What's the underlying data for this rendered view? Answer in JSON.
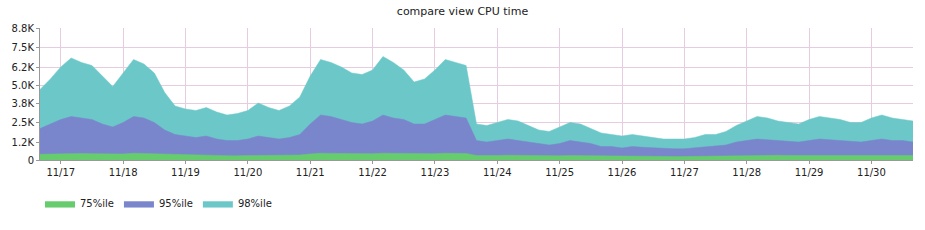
{
  "chart_data": {
    "type": "area",
    "title": "compare view CPU time",
    "stacked": false,
    "grid": true,
    "legend": "bottom left",
    "categories": [
      null,
      null,
      "11/17",
      null,
      null,
      null,
      null,
      null,
      "11/18",
      null,
      null,
      null,
      null,
      null,
      "11/19",
      null,
      null,
      null,
      null,
      null,
      "11/20",
      null,
      null,
      null,
      null,
      null,
      "11/21",
      null,
      null,
      null,
      null,
      null,
      "11/22",
      null,
      null,
      null,
      null,
      null,
      "11/23",
      null,
      null,
      null,
      null,
      null,
      "11/24",
      null,
      null,
      null,
      null,
      null,
      "11/25",
      null,
      null,
      null,
      null,
      null,
      "11/26",
      null,
      null,
      null,
      null,
      null,
      "11/27",
      null,
      null,
      null,
      null,
      null,
      "11/28",
      null,
      null,
      null,
      null,
      null,
      "11/29",
      null,
      null,
      null,
      null,
      null,
      "11/30",
      null,
      null,
      null,
      null
    ],
    "series": [
      {
        "name": "75%ile",
        "color": "#66cc6e",
        "values": [
          380,
          400,
          420,
          450,
          430,
          420,
          400,
          380,
          400,
          450,
          430,
          420,
          380,
          340,
          320,
          310,
          320,
          300,
          290,
          290,
          300,
          320,
          310,
          300,
          310,
          330,
          400,
          450,
          440,
          430,
          410,
          400,
          420,
          450,
          440,
          430,
          410,
          400,
          420,
          450,
          440,
          430,
          300,
          280,
          300,
          320,
          310,
          300,
          280,
          270,
          280,
          300,
          290,
          280,
          260,
          260,
          240,
          250,
          250,
          240,
          230,
          230,
          230,
          240,
          250,
          260,
          270,
          290,
          310,
          330,
          320,
          310,
          300,
          300,
          310,
          330,
          320,
          310,
          300,
          300,
          320,
          340,
          320,
          310,
          300
        ]
      },
      {
        "name": "95%ile",
        "color": "#7a86cc",
        "values": [
          2100,
          2400,
          2700,
          2900,
          2800,
          2700,
          2400,
          2200,
          2500,
          2900,
          2800,
          2500,
          2000,
          1700,
          1600,
          1500,
          1600,
          1400,
          1300,
          1300,
          1400,
          1600,
          1500,
          1400,
          1500,
          1700,
          2400,
          3000,
          2900,
          2700,
          2500,
          2400,
          2600,
          3000,
          2800,
          2700,
          2400,
          2400,
          2700,
          3000,
          2900,
          2800,
          1300,
          1200,
          1300,
          1400,
          1300,
          1200,
          1100,
          1000,
          1100,
          1300,
          1200,
          1100,
          900,
          900,
          800,
          900,
          850,
          800,
          750,
          750,
          750,
          800,
          850,
          900,
          1000,
          1200,
          1300,
          1400,
          1350,
          1300,
          1200,
          1200,
          1300,
          1400,
          1350,
          1300,
          1200,
          1200,
          1300,
          1400,
          1300,
          1300,
          1200
        ]
      },
      {
        "name": "98%ile",
        "color": "#6cc8c8",
        "values": [
          4700,
          5400,
          6200,
          6800,
          6500,
          6300,
          5600,
          4900,
          5800,
          6700,
          6400,
          5800,
          4500,
          3600,
          3400,
          3300,
          3500,
          3200,
          3000,
          3100,
          3300,
          3800,
          3500,
          3300,
          3600,
          4200,
          5600,
          6700,
          6500,
          6200,
          5800,
          5700,
          6000,
          6900,
          6500,
          6000,
          5200,
          5400,
          6000,
          6700,
          6500,
          6300,
          2400,
          2300,
          2500,
          2700,
          2600,
          2300,
          2000,
          1900,
          2200,
          2500,
          2400,
          2100,
          1800,
          1700,
          1600,
          1700,
          1600,
          1500,
          1400,
          1400,
          1400,
          1500,
          1700,
          1700,
          1900,
          2300,
          2600,
          2900,
          2800,
          2600,
          2500,
          2400,
          2700,
          2900,
          2800,
          2700,
          2500,
          2500,
          2800,
          3000,
          2800,
          2700,
          2600
        ]
      }
    ],
    "ylim": [
      0,
      8800
    ],
    "yticks": [
      0,
      {
        "value": 1200,
        "label": "1.2K"
      },
      {
        "value": 2500,
        "label": "2.5K"
      },
      {
        "value": 3800,
        "label": "3.8K"
      },
      {
        "value": 5000,
        "label": "5.0K"
      },
      {
        "value": 6200,
        "label": "6.2K"
      },
      {
        "value": 7500,
        "label": "7.5K"
      },
      {
        "value": 8800,
        "label": "8.8K"
      }
    ]
  }
}
